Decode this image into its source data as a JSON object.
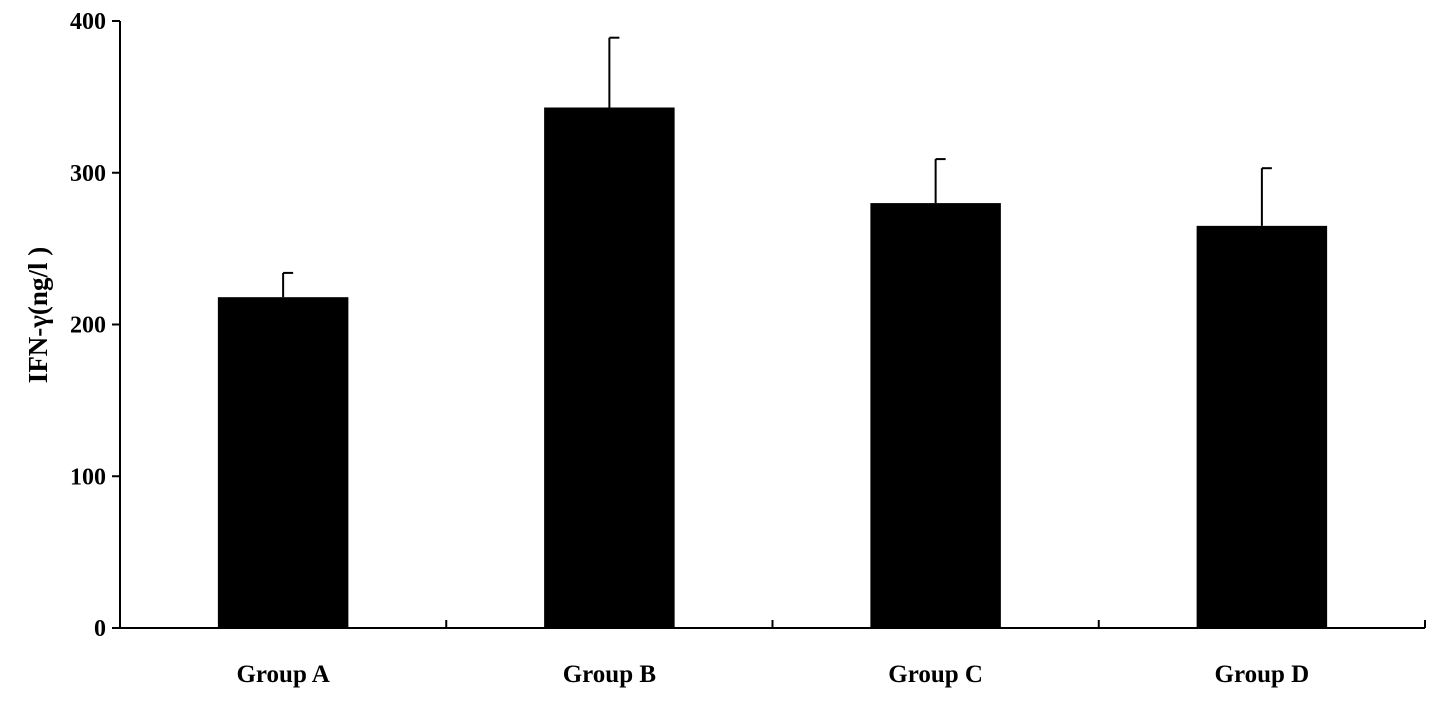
{
  "chart_data": {
    "type": "bar",
    "title": "",
    "xlabel": "",
    "ylabel": "IFN-γ(ng/l )",
    "categories": [
      "Group A",
      "Group B",
      "Group C",
      "Group D"
    ],
    "values": [
      218,
      343,
      280,
      265
    ],
    "error_upper": [
      234,
      389,
      309,
      303
    ],
    "ylim": [
      0,
      400
    ],
    "yticks": [
      0,
      100,
      200,
      300,
      400
    ],
    "grid": false,
    "bar_color": "#000000"
  }
}
